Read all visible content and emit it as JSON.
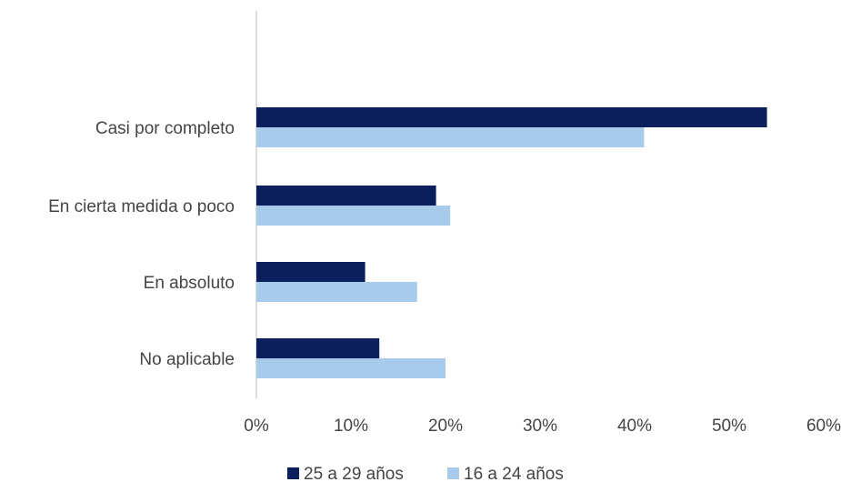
{
  "chart_data": {
    "type": "bar",
    "orientation": "horizontal",
    "categories": [
      "Casi por completo",
      "En cierta medida o poco",
      "En absoluto",
      "No aplicable"
    ],
    "series": [
      {
        "name": "25 a 29 años",
        "values": [
          54,
          19,
          11.5,
          13
        ],
        "color": "#0b1f5c"
      },
      {
        "name": "16 a 24 años",
        "values": [
          41,
          20.5,
          17,
          20
        ],
        "color": "#a9cbeb"
      }
    ],
    "x_ticks": [
      "0%",
      "10%",
      "20%",
      "30%",
      "40%",
      "50%",
      "60%"
    ],
    "xlim": [
      0,
      60
    ],
    "grid": false,
    "legend_position": "bottom",
    "title": "",
    "xlabel": "",
    "ylabel": ""
  }
}
